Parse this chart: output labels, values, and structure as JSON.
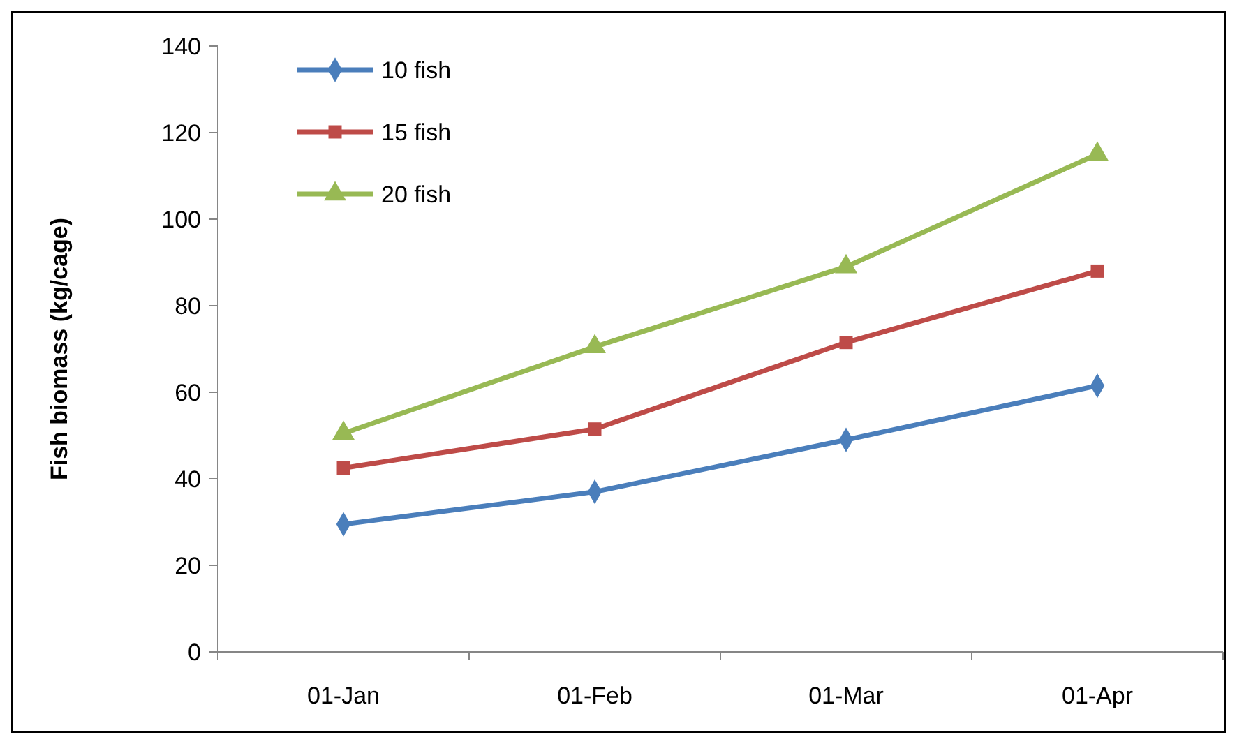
{
  "chart_data": {
    "type": "line",
    "ylabel": "Fish biomass (kg/cage)",
    "categories": [
      "01-Jan",
      "01-Feb",
      "01-Mar",
      "01-Apr"
    ],
    "series": [
      {
        "name": "10 fish",
        "color": "#4a7ebb",
        "marker": "diamond",
        "values": [
          29.5,
          37,
          49,
          61.5
        ]
      },
      {
        "name": "15 fish",
        "color": "#be4b48",
        "marker": "square",
        "values": [
          42.5,
          51.5,
          71.5,
          88
        ]
      },
      {
        "name": "20 fish",
        "color": "#98b954",
        "marker": "triangle",
        "values": [
          50.5,
          70.5,
          89,
          115
        ]
      }
    ],
    "ylim": [
      0,
      140
    ],
    "yticks": [
      0,
      20,
      40,
      60,
      80,
      100,
      120,
      140
    ],
    "grid": false,
    "legend": "top left",
    "line_style": "solid"
  }
}
